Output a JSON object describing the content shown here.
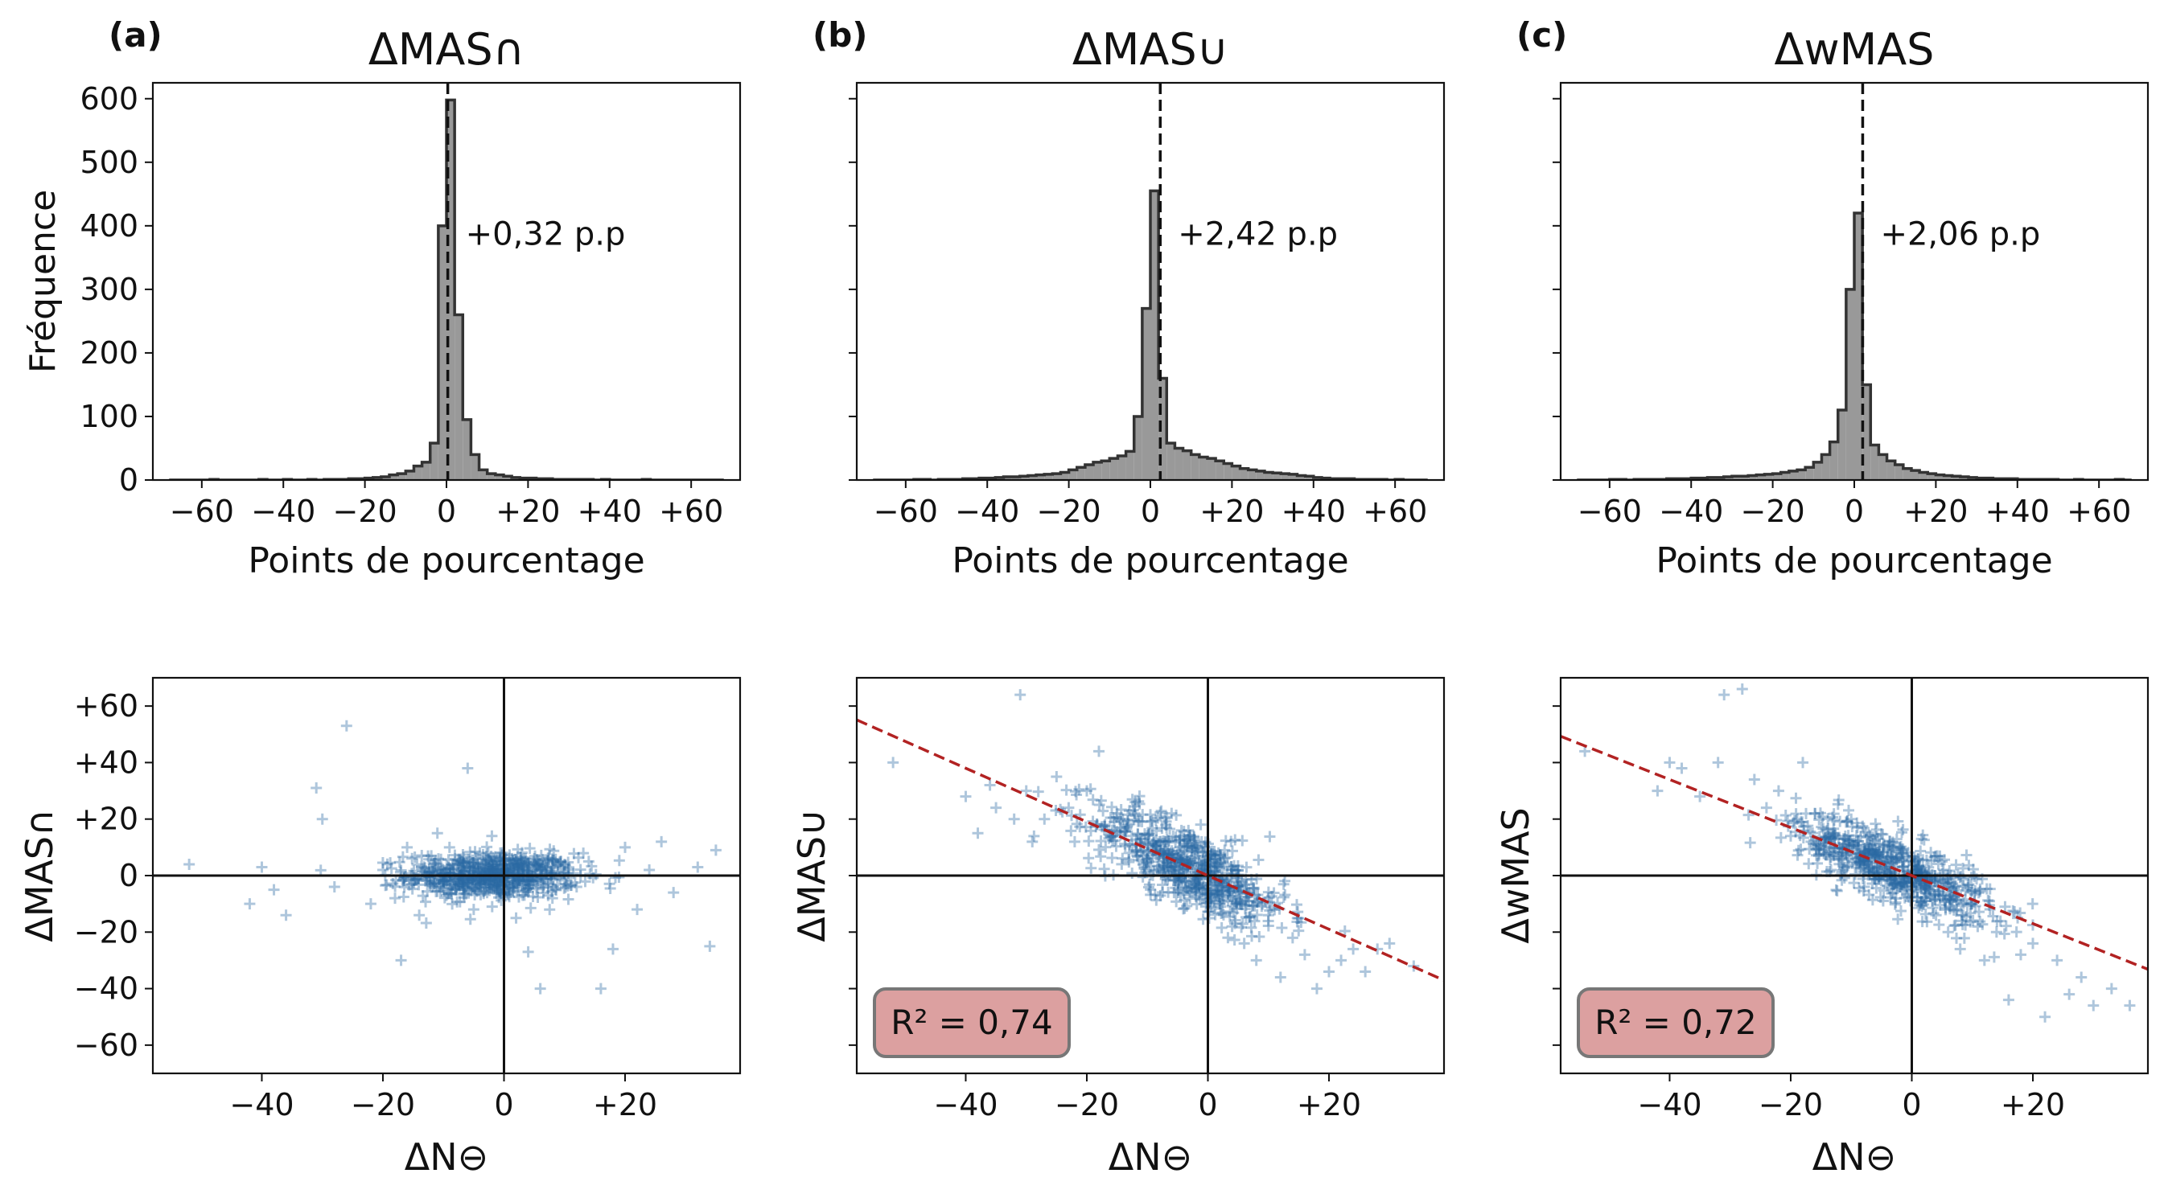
{
  "chart_data": [
    {
      "panel": "(a)",
      "type": "histogram",
      "title": "ΔMAS∩",
      "xlabel": "Points de pourcentage",
      "ylabel": "Fréquence",
      "xlim": [
        -72,
        72
      ],
      "ylim": [
        0,
        625
      ],
      "xticks": [
        -60,
        -40,
        -20,
        0,
        20,
        40,
        60
      ],
      "xtick_labels": [
        "−60",
        "−40",
        "−20",
        "0",
        "+20",
        "+40",
        "+60"
      ],
      "yticks": [
        0,
        100,
        200,
        300,
        400,
        500,
        600
      ],
      "ytick_labels": [
        "0",
        "100",
        "200",
        "300",
        "400",
        "500",
        "600"
      ],
      "bin_edges": [
        -68,
        -66,
        -64,
        -62,
        -60,
        -58,
        -56,
        -54,
        -52,
        -50,
        -48,
        -46,
        -44,
        -42,
        -40,
        -38,
        -36,
        -34,
        -32,
        -30,
        -28,
        -26,
        -24,
        -22,
        -20,
        -18,
        -16,
        -14,
        -12,
        -10,
        -8,
        -6,
        -4,
        -2,
        0,
        2,
        4,
        6,
        8,
        10,
        12,
        14,
        16,
        18,
        20,
        22,
        24,
        26,
        28,
        30,
        32,
        34,
        36,
        38,
        40,
        42,
        44,
        46,
        48,
        50,
        52,
        54,
        56,
        58,
        60,
        62,
        64,
        66,
        68
      ],
      "counts": [
        0,
        0,
        0,
        0,
        0,
        1,
        0,
        0,
        0,
        0,
        0,
        1,
        0,
        0,
        1,
        0,
        0,
        1,
        0,
        1,
        1,
        1,
        2,
        2,
        3,
        4,
        5,
        8,
        10,
        14,
        22,
        28,
        58,
        400,
        598,
        260,
        95,
        40,
        16,
        10,
        8,
        6,
        4,
        3,
        3,
        2,
        2,
        1,
        1,
        1,
        1,
        1,
        0,
        1,
        0,
        0,
        0,
        0,
        1,
        0,
        0,
        0,
        0,
        0,
        0,
        0,
        0,
        0
      ],
      "mean_line": 0.32,
      "annotation": "+0,32 p.p"
    },
    {
      "panel": "(b)",
      "type": "histogram",
      "title": "ΔMAS∪",
      "xlabel": "Points de pourcentage",
      "xlim": [
        -72,
        72
      ],
      "ylim": [
        0,
        625
      ],
      "xticks": [
        -60,
        -40,
        -20,
        0,
        20,
        40,
        60
      ],
      "xtick_labels": [
        "−60",
        "−40",
        "−20",
        "0",
        "+20",
        "+40",
        "+60"
      ],
      "yticks": [
        0,
        100,
        200,
        300,
        400,
        500,
        600
      ],
      "bin_edges": [
        -68,
        -66,
        -64,
        -62,
        -60,
        -58,
        -56,
        -54,
        -52,
        -50,
        -48,
        -46,
        -44,
        -42,
        -40,
        -38,
        -36,
        -34,
        -32,
        -30,
        -28,
        -26,
        -24,
        -22,
        -20,
        -18,
        -16,
        -14,
        -12,
        -10,
        -8,
        -6,
        -4,
        -2,
        0,
        2,
        4,
        6,
        8,
        10,
        12,
        14,
        16,
        18,
        20,
        22,
        24,
        26,
        28,
        30,
        32,
        34,
        36,
        38,
        40,
        42,
        44,
        46,
        48,
        50,
        52,
        54,
        56,
        58,
        60,
        62,
        64,
        66,
        68
      ],
      "counts": [
        0,
        0,
        0,
        0,
        0,
        1,
        1,
        0,
        1,
        1,
        1,
        2,
        2,
        3,
        3,
        4,
        5,
        5,
        6,
        7,
        8,
        9,
        10,
        12,
        16,
        20,
        24,
        28,
        30,
        34,
        38,
        45,
        100,
        270,
        455,
        160,
        58,
        50,
        46,
        40,
        36,
        34,
        30,
        26,
        22,
        18,
        16,
        14,
        12,
        11,
        10,
        9,
        7,
        6,
        4,
        3,
        2,
        2,
        2,
        1,
        1,
        1,
        1,
        0,
        1,
        0,
        0,
        0
      ],
      "mean_line": 2.42,
      "annotation": "+2,42 p.p"
    },
    {
      "panel": "(c)",
      "type": "histogram",
      "title": "ΔwMAS",
      "xlabel": "Points de pourcentage",
      "xlim": [
        -72,
        72
      ],
      "ylim": [
        0,
        625
      ],
      "xticks": [
        -60,
        -40,
        -20,
        0,
        20,
        40,
        60
      ],
      "xtick_labels": [
        "−60",
        "−40",
        "−20",
        "0",
        "+20",
        "+40",
        "+60"
      ],
      "yticks": [
        0,
        100,
        200,
        300,
        400,
        500,
        600
      ],
      "bin_edges": [
        -68,
        -66,
        -64,
        -62,
        -60,
        -58,
        -56,
        -54,
        -52,
        -50,
        -48,
        -46,
        -44,
        -42,
        -40,
        -38,
        -36,
        -34,
        -32,
        -30,
        -28,
        -26,
        -24,
        -22,
        -20,
        -18,
        -16,
        -14,
        -12,
        -10,
        -8,
        -6,
        -4,
        -2,
        0,
        2,
        4,
        6,
        8,
        10,
        12,
        14,
        16,
        18,
        20,
        22,
        24,
        26,
        28,
        30,
        32,
        34,
        36,
        38,
        40,
        42,
        44,
        46,
        48,
        50,
        52,
        54,
        56,
        58,
        60,
        62,
        64,
        66,
        68
      ],
      "counts": [
        0,
        0,
        0,
        0,
        1,
        1,
        0,
        1,
        1,
        1,
        1,
        2,
        2,
        2,
        3,
        3,
        4,
        4,
        5,
        6,
        6,
        7,
        8,
        9,
        10,
        12,
        14,
        16,
        20,
        28,
        40,
        60,
        110,
        300,
        420,
        150,
        55,
        40,
        30,
        24,
        18,
        15,
        12,
        10,
        8,
        7,
        6,
        5,
        4,
        3,
        3,
        2,
        2,
        2,
        1,
        1,
        1,
        1,
        1,
        0,
        0,
        1,
        0,
        0,
        0,
        0,
        1,
        0
      ],
      "mean_line": 2.06,
      "annotation": "+2,06 p.p"
    },
    {
      "panel": "(a)",
      "type": "scatter",
      "xlabel": "ΔN⊖",
      "ylabel": "ΔMAS∩",
      "xlim": [
        -58,
        39
      ],
      "ylim": [
        -70,
        70
      ],
      "xticks": [
        -40,
        -20,
        0,
        20
      ],
      "xtick_labels": [
        "−40",
        "−20",
        "0",
        "+20"
      ],
      "yticks": [
        -60,
        -40,
        -20,
        0,
        20,
        40,
        60
      ],
      "ytick_labels": [
        "−60",
        "−40",
        "−20",
        "0",
        "+20",
        "+40",
        "+60"
      ],
      "points": [
        [
          -52,
          4
        ],
        [
          -40,
          3
        ],
        [
          -42,
          -10
        ],
        [
          -38,
          -5
        ],
        [
          -36,
          -14
        ],
        [
          -30,
          20
        ],
        [
          -31,
          31
        ],
        [
          -28,
          -4
        ],
        [
          -26,
          53
        ],
        [
          -22,
          -10
        ],
        [
          -20,
          2
        ],
        [
          -18,
          -8
        ],
        [
          -17,
          -30
        ],
        [
          -16,
          10
        ],
        [
          -15,
          0
        ],
        [
          -14,
          -14
        ],
        [
          -12,
          7
        ],
        [
          -11,
          15
        ],
        [
          -10,
          -2
        ],
        [
          -9,
          10
        ],
        [
          -8,
          -5
        ],
        [
          -7,
          5
        ],
        [
          -6,
          38
        ],
        [
          -5,
          -12
        ],
        [
          -4,
          8
        ],
        [
          -3,
          -3
        ],
        [
          -2,
          14
        ],
        [
          -1,
          4
        ],
        [
          0,
          -6
        ],
        [
          1,
          2
        ],
        [
          2,
          -15
        ],
        [
          3,
          3
        ],
        [
          4,
          -27
        ],
        [
          5,
          6
        ],
        [
          6,
          -40
        ],
        [
          7,
          3
        ],
        [
          8,
          -8
        ],
        [
          10,
          4
        ],
        [
          12,
          -4
        ],
        [
          14,
          5
        ],
        [
          16,
          -40
        ],
        [
          18,
          -26
        ],
        [
          20,
          10
        ],
        [
          22,
          -12
        ],
        [
          24,
          2
        ],
        [
          26,
          12
        ],
        [
          28,
          -6
        ],
        [
          32,
          3
        ],
        [
          34,
          -25
        ],
        [
          35,
          9
        ]
      ],
      "dense_cluster": {
        "x_mean": -2,
        "y_mean": 0,
        "x_sd": 7,
        "y_sd": 4,
        "count": 700
      }
    },
    {
      "panel": "(b)",
      "type": "scatter",
      "xlabel": "ΔN⊖",
      "ylabel": "ΔMAS∪",
      "xlim": [
        -58,
        39
      ],
      "ylim": [
        -70,
        70
      ],
      "xticks": [
        -40,
        -20,
        0,
        20
      ],
      "xtick_labels": [
        "−40",
        "−20",
        "0",
        "+20"
      ],
      "yticks": [
        -60,
        -40,
        -20,
        0,
        20,
        40,
        60
      ],
      "points": [
        [
          -52,
          40
        ],
        [
          -40,
          28
        ],
        [
          -38,
          15
        ],
        [
          -36,
          32
        ],
        [
          -35,
          24
        ],
        [
          -32,
          20
        ],
        [
          -31,
          64
        ],
        [
          -30,
          30
        ],
        [
          -29,
          12
        ],
        [
          -27,
          20
        ],
        [
          -25,
          35
        ],
        [
          -23,
          24
        ],
        [
          -22,
          12
        ],
        [
          -20,
          30
        ],
        [
          -18,
          44
        ],
        [
          -17,
          18
        ],
        [
          -15,
          22
        ],
        [
          -13,
          8
        ],
        [
          -12,
          26
        ],
        [
          -10,
          6
        ],
        [
          -8,
          12
        ],
        [
          -6,
          22
        ],
        [
          -4,
          2
        ],
        [
          -2,
          -6
        ],
        [
          2,
          -10
        ],
        [
          4,
          -18
        ],
        [
          6,
          -24
        ],
        [
          8,
          -30
        ],
        [
          10,
          -14
        ],
        [
          12,
          -36
        ],
        [
          14,
          -22
        ],
        [
          16,
          -28
        ],
        [
          18,
          -40
        ],
        [
          20,
          -34
        ],
        [
          22,
          -30
        ],
        [
          24,
          -26
        ],
        [
          26,
          -34
        ],
        [
          28,
          -26
        ],
        [
          30,
          -24
        ],
        [
          34,
          -32
        ]
      ],
      "dense_cluster": {
        "slope": -1.0,
        "x_mean": -3,
        "x_sd": 8,
        "resid_sd": 7,
        "count": 650
      },
      "fit_line": {
        "slope": -0.95,
        "intercept": 0
      },
      "annotation": "R² = 0,74"
    },
    {
      "panel": "(c)",
      "type": "scatter",
      "xlabel": "ΔN⊖",
      "ylabel": "ΔwMAS",
      "xlim": [
        -58,
        39
      ],
      "ylim": [
        -70,
        70
      ],
      "xticks": [
        -40,
        -20,
        0,
        20
      ],
      "xtick_labels": [
        "−40",
        "−20",
        "0",
        "+20"
      ],
      "yticks": [
        -60,
        -40,
        -20,
        0,
        20,
        40,
        60
      ],
      "points": [
        [
          -54,
          44
        ],
        [
          -42,
          30
        ],
        [
          -40,
          40
        ],
        [
          -38,
          38
        ],
        [
          -35,
          28
        ],
        [
          -32,
          40
        ],
        [
          -31,
          64
        ],
        [
          -28,
          66
        ],
        [
          -26,
          34
        ],
        [
          -24,
          24
        ],
        [
          -22,
          30
        ],
        [
          -20,
          14
        ],
        [
          -18,
          40
        ],
        [
          -16,
          22
        ],
        [
          -14,
          16
        ],
        [
          -12,
          10
        ],
        [
          -10,
          20
        ],
        [
          -8,
          6
        ],
        [
          -6,
          14
        ],
        [
          -4,
          4
        ],
        [
          -2,
          -4
        ],
        [
          2,
          -8
        ],
        [
          4,
          -14
        ],
        [
          6,
          -20
        ],
        [
          8,
          -26
        ],
        [
          10,
          -10
        ],
        [
          12,
          -30
        ],
        [
          14,
          -20
        ],
        [
          16,
          -44
        ],
        [
          18,
          -28
        ],
        [
          20,
          -24
        ],
        [
          22,
          -50
        ],
        [
          24,
          -30
        ],
        [
          26,
          -42
        ],
        [
          28,
          -36
        ],
        [
          30,
          -46
        ],
        [
          33,
          -40
        ],
        [
          36,
          -46
        ]
      ],
      "dense_cluster": {
        "slope": -0.85,
        "x_mean": -3,
        "x_sd": 8,
        "resid_sd": 6,
        "count": 650
      },
      "fit_line": {
        "slope": -0.85,
        "intercept": 0
      },
      "annotation": "R² = 0,72"
    }
  ],
  "colors": {
    "hist_fill": "#999999",
    "hist_edge": "#333333",
    "scatter": "#2b6aa3",
    "fit_line": "#b22222",
    "r2_box_fill": "#dca0a0",
    "r2_box_edge": "#777777"
  },
  "labels": {
    "panel_a": "(a)",
    "panel_b": "(b)",
    "panel_c": "(c)"
  }
}
